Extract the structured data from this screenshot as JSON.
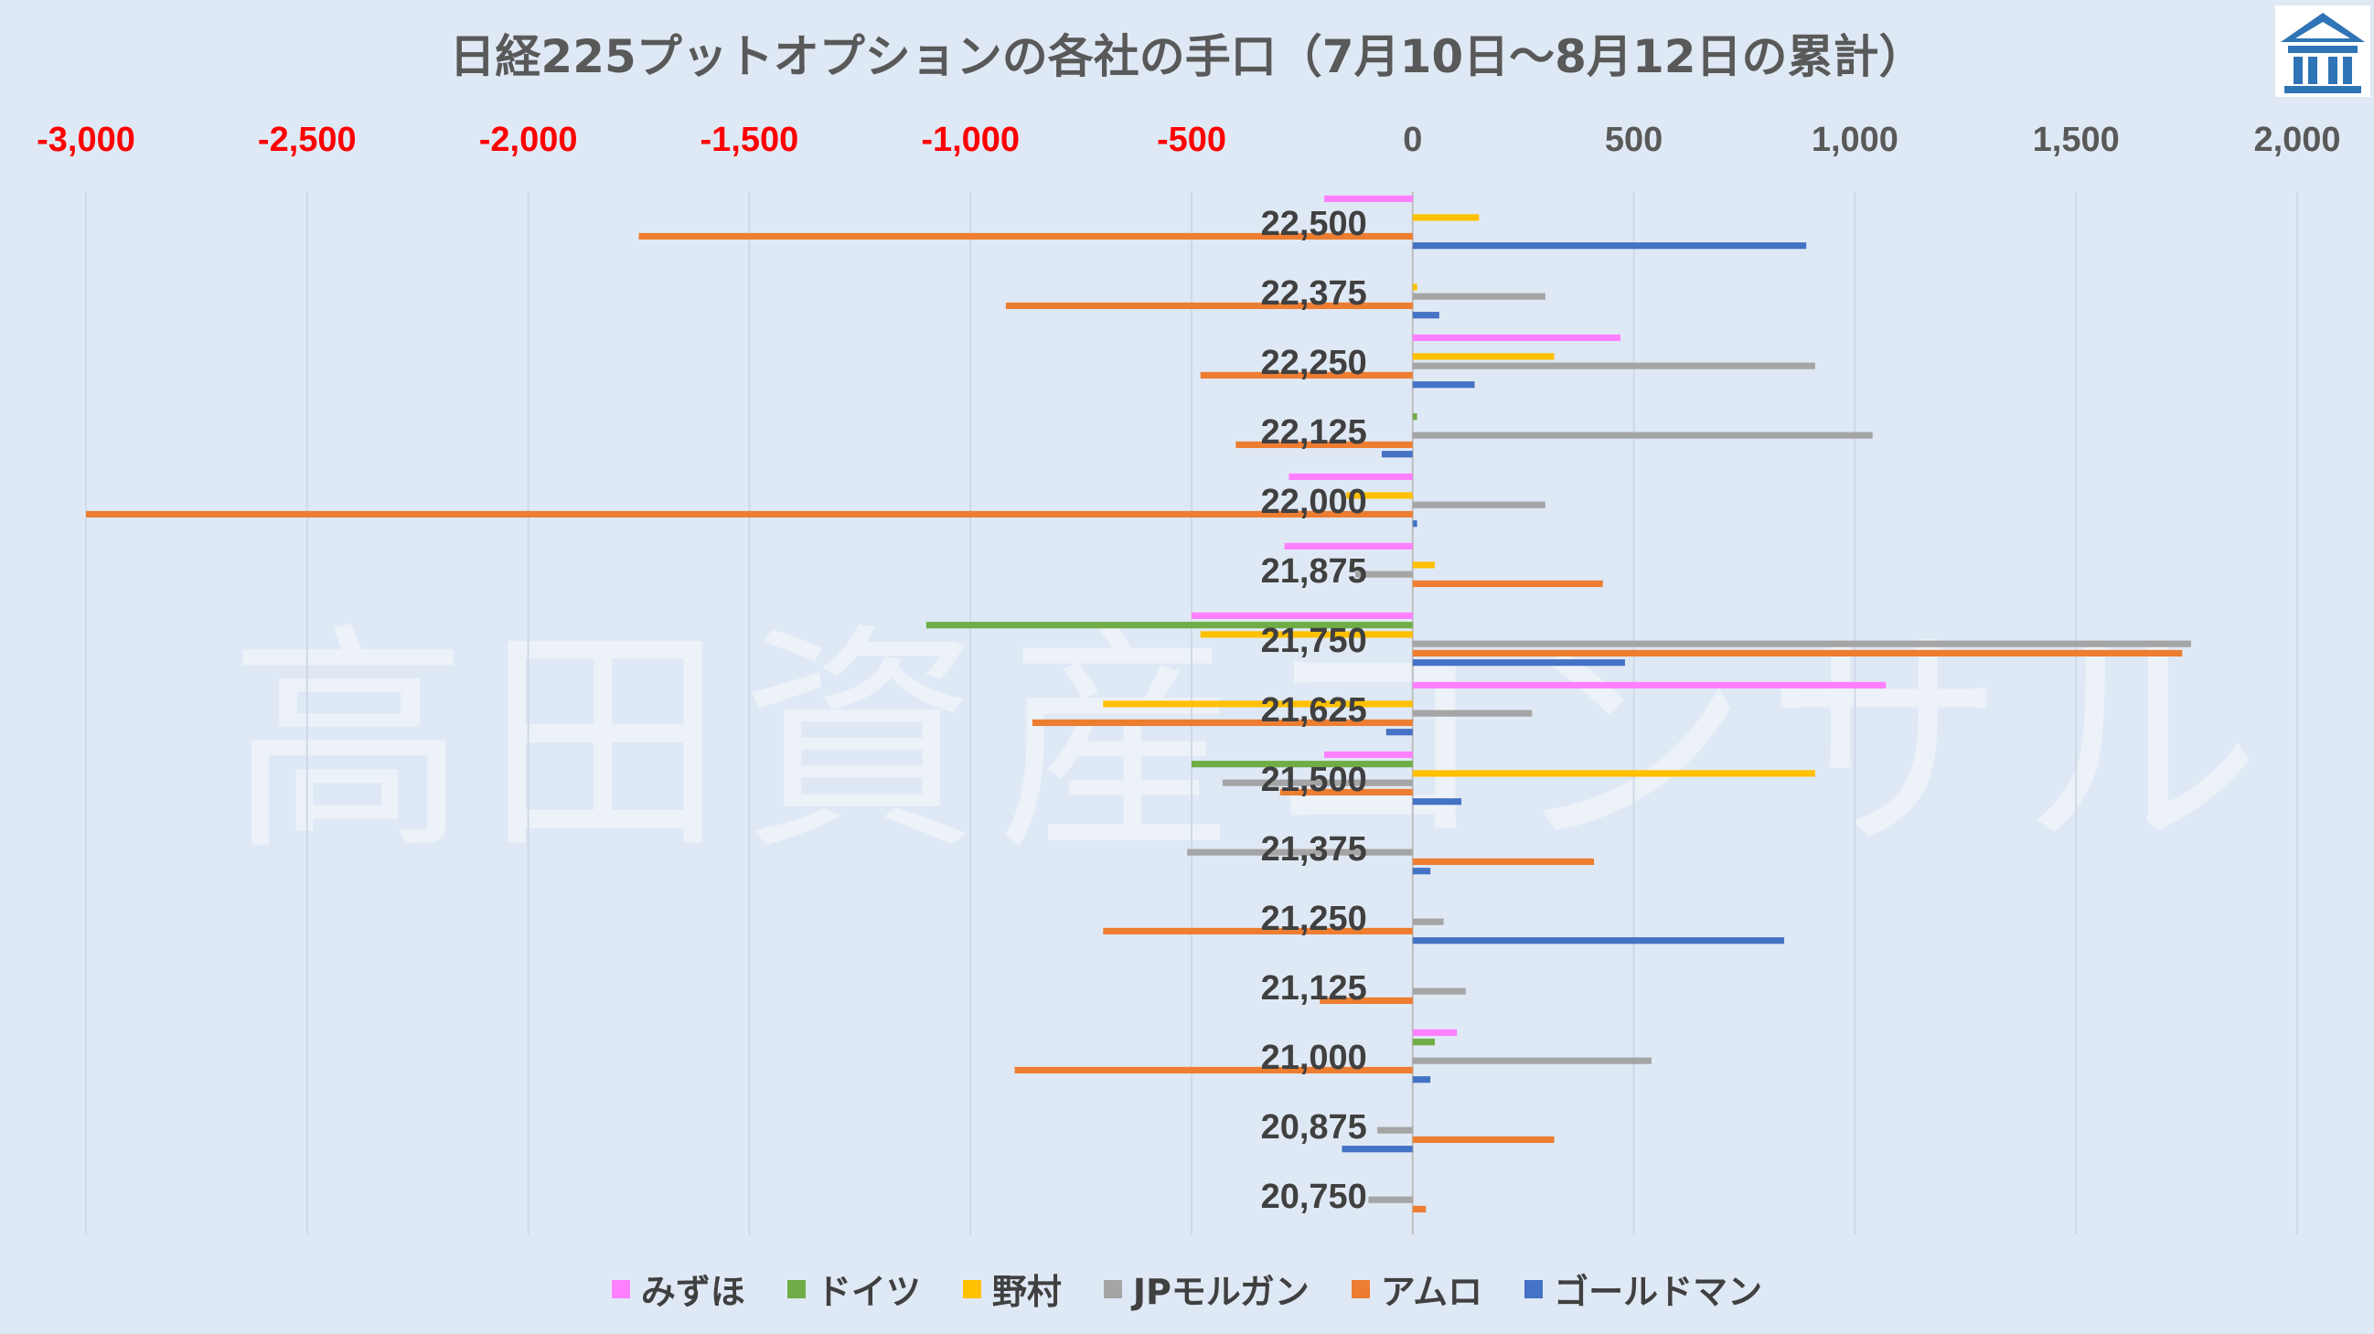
{
  "watermark": "高田資産コンサル",
  "chart_data": {
    "type": "bar",
    "orientation": "horizontal",
    "title": "日経225プットオプションの各社の手口（7月10日～8月12日の累計）",
    "categories": [
      "22,500",
      "22,375",
      "22,250",
      "22,125",
      "22,000",
      "21,875",
      "21,750",
      "21,625",
      "21,500",
      "21,375",
      "21,250",
      "21,125",
      "21,000",
      "20,875",
      "20,750"
    ],
    "xlim": [
      -3000,
      2000
    ],
    "xticks": [
      -3000,
      -2500,
      -2000,
      -1500,
      -1000,
      -500,
      0,
      500,
      1000,
      1500,
      2000
    ],
    "xtick_labels": [
      "-3,000",
      "-2,500",
      "-2,000",
      "-1,500",
      "-1,000",
      "-500",
      "0",
      "500",
      "1,000",
      "1,500",
      "2,000"
    ],
    "negative_tick_color": "#ff0000",
    "positive_tick_color": "#595959",
    "grid": "vertical",
    "legend_position": "bottom",
    "series": [
      {
        "name": "みずほ",
        "color": "#ff80ff",
        "values": [
          -200,
          0,
          470,
          0,
          -280,
          -290,
          -500,
          1070,
          -200,
          0,
          0,
          0,
          100,
          0,
          0
        ]
      },
      {
        "name": "ドイツ",
        "color": "#70ad47",
        "values": [
          0,
          0,
          0,
          10,
          0,
          0,
          -1100,
          0,
          -500,
          0,
          0,
          0,
          50,
          0,
          0
        ]
      },
      {
        "name": "野村",
        "color": "#ffc000",
        "values": [
          150,
          10,
          320,
          0,
          -150,
          50,
          -480,
          -700,
          910,
          0,
          0,
          0,
          0,
          0,
          0
        ]
      },
      {
        "name": "JPモルガン",
        "color": "#a5a5a5",
        "values": [
          0,
          300,
          910,
          1040,
          300,
          -130,
          1760,
          270,
          -430,
          -510,
          70,
          120,
          540,
          -80,
          -100
        ]
      },
      {
        "name": "アムロ",
        "color": "#ed7d31",
        "values": [
          -1750,
          -920,
          -480,
          -400,
          -3000,
          430,
          1740,
          -860,
          -300,
          410,
          -700,
          -210,
          -900,
          320,
          30
        ]
      },
      {
        "name": "ゴールドマン",
        "color": "#4472c4",
        "values": [
          890,
          60,
          140,
          -70,
          10,
          0,
          480,
          -60,
          110,
          40,
          840,
          0,
          40,
          -160,
          0
        ]
      }
    ]
  }
}
